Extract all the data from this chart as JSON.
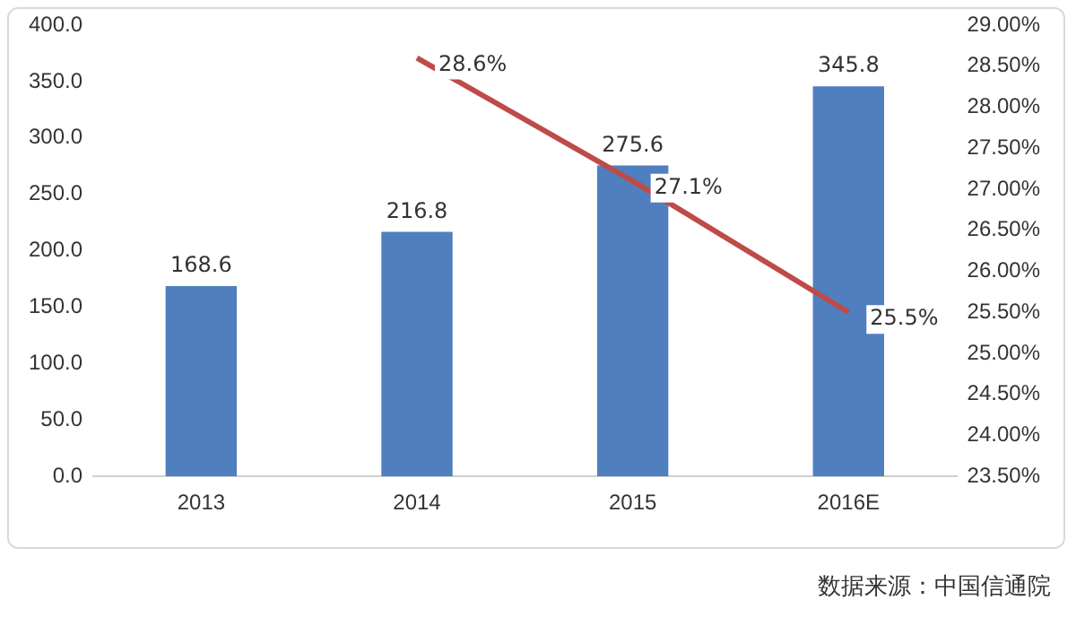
{
  "chart_data": {
    "type": "bar",
    "categories": [
      "2013",
      "2014",
      "2015",
      "2016E"
    ],
    "series": [
      {
        "color": "#4f7fbf",
        "values": [
          168.6,
          216.8,
          275.6,
          345.8
        ],
        "value_labels": [
          "168.6",
          "216.8",
          "275.6",
          "345.8"
        ]
      },
      {
        "type": "line",
        "axis": "y2",
        "color": "#be4b48",
        "values": [
          null,
          28.6,
          27.1,
          25.5
        ],
        "value_labels": [
          null,
          "28.6%",
          "27.1%",
          "25.5%"
        ]
      }
    ],
    "ylim": [
      0,
      400
    ],
    "yticks": [
      {
        "value": 0,
        "label": "0.0"
      },
      {
        "value": 50,
        "label": "50.0"
      },
      {
        "value": 100,
        "label": "100.0"
      },
      {
        "value": 150,
        "label": "150.0"
      },
      {
        "value": 200,
        "label": "200.0"
      },
      {
        "value": 250,
        "label": "250.0"
      },
      {
        "value": 300,
        "label": "300.0"
      },
      {
        "value": 350,
        "label": "350.0"
      },
      {
        "value": 400,
        "label": "400.0"
      }
    ],
    "y2lim": [
      23.5,
      29
    ],
    "y2ticks": [
      {
        "value": 23.5,
        "label": "23.50%"
      },
      {
        "value": 24,
        "label": "24.00%"
      },
      {
        "value": 24.5,
        "label": "24.50%"
      },
      {
        "value": 25,
        "label": "25.00%"
      },
      {
        "value": 25.5,
        "label": "25.50%"
      },
      {
        "value": 26,
        "label": "26.00%"
      },
      {
        "value": 26.5,
        "label": "26.50%"
      },
      {
        "value": 27,
        "label": "27.00%"
      },
      {
        "value": 27.5,
        "label": "27.50%"
      },
      {
        "value": 28,
        "label": "28.00%"
      },
      {
        "value": 28.5,
        "label": "28.50%"
      },
      {
        "value": 29,
        "label": "29.00%"
      }
    ],
    "grid": false,
    "legend": false,
    "marker": "none",
    "annotations": [
      "数据来源：中国信通院"
    ]
  }
}
